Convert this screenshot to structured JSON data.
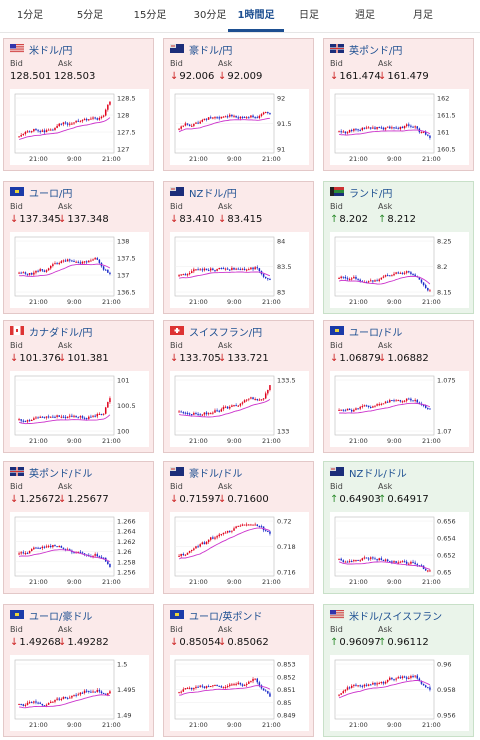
{
  "tabs": [
    {
      "label": "1分足"
    },
    {
      "label": "5分足"
    },
    {
      "label": "15分足"
    },
    {
      "label": "30分足"
    },
    {
      "label": "1時間足",
      "active": true
    },
    {
      "label": "日足"
    },
    {
      "label": "週足"
    },
    {
      "label": "月足"
    }
  ],
  "labels": {
    "bid": "Bid",
    "ask": "Ask"
  },
  "cards": [
    {
      "pair": "米ドル/円",
      "flag": "us-flag",
      "bid": "128.501",
      "ask": "128.503",
      "dir": "none",
      "y_ticks": [
        "128.5",
        "128",
        "127.5",
        "127"
      ],
      "x_ticks": [
        "21:00",
        "9:00",
        "21:00"
      ]
    },
    {
      "pair": "豪ドル/円",
      "flag": "au-flag",
      "bid": "92.006",
      "ask": "92.009",
      "dir": "down",
      "y_ticks": [
        "92",
        "91.5",
        "91"
      ],
      "x_ticks": [
        "21:00",
        "9:00",
        "21:00"
      ]
    },
    {
      "pair": "英ポンド/円",
      "flag": "uk-flag",
      "bid": "161.474",
      "ask": "161.479",
      "dir": "down",
      "y_ticks": [
        "162",
        "161.5",
        "161",
        "160.5"
      ],
      "x_ticks": [
        "21:00",
        "9:00",
        "21:00"
      ]
    },
    {
      "pair": "ユーロ/円",
      "flag": "eu-flag",
      "bid": "137.345",
      "ask": "137.348",
      "dir": "down",
      "y_ticks": [
        "138",
        "137.5",
        "137",
        "136.5"
      ],
      "x_ticks": [
        "21:00",
        "9:00",
        "21:00"
      ]
    },
    {
      "pair": "NZドル/円",
      "flag": "nz-flag",
      "bid": "83.410",
      "ask": "83.415",
      "dir": "down",
      "y_ticks": [
        "84",
        "83.5",
        "83"
      ],
      "x_ticks": [
        "21:00",
        "9:00",
        "21:00"
      ]
    },
    {
      "pair": "ランド/円",
      "flag": "za-flag",
      "bid": "8.202",
      "ask": "8.212",
      "dir": "up",
      "y_ticks": [
        "8.25",
        "8.2",
        "8.15"
      ],
      "x_ticks": [
        "21:00",
        "9:00",
        "21:00"
      ]
    },
    {
      "pair": "カナダドル/円",
      "flag": "ca-flag",
      "bid": "101.376",
      "ask": "101.381",
      "dir": "down",
      "y_ticks": [
        "101",
        "100.5",
        "100"
      ],
      "x_ticks": [
        "21:00",
        "9:00",
        "21:00"
      ]
    },
    {
      "pair": "スイスフラン/円",
      "flag": "ch-flag",
      "bid": "133.705",
      "ask": "133.721",
      "dir": "down",
      "y_ticks": [
        "133.5",
        "133"
      ],
      "x_ticks": [
        "21:00",
        "9:00",
        "21:00"
      ]
    },
    {
      "pair": "ユーロ/ドル",
      "flag": "eu-flag",
      "bid": "1.06879",
      "ask": "1.06882",
      "dir": "down",
      "y_ticks": [
        "1.075",
        "1.07"
      ],
      "x_ticks": [
        "21:00",
        "9:00",
        "21:00"
      ]
    },
    {
      "pair": "英ポンド/ドル",
      "flag": "uk-flag",
      "bid": "1.25672",
      "ask": "1.25677",
      "dir": "down",
      "y_ticks": [
        "1.266",
        "1.264",
        "1.262",
        "1.26",
        "1.258",
        "1.256"
      ],
      "x_ticks": [
        "21:00",
        "9:00",
        "21:00"
      ]
    },
    {
      "pair": "豪ドル/ドル",
      "flag": "au-flag",
      "bid": "0.71597",
      "ask": "0.71600",
      "dir": "down",
      "y_ticks": [
        "0.72",
        "0.718",
        "0.716"
      ],
      "x_ticks": [
        "21:00",
        "9:00",
        "21:00"
      ]
    },
    {
      "pair": "NZドル/ドル",
      "flag": "nz-flag",
      "bid": "0.64903",
      "ask": "0.64917",
      "dir": "up",
      "y_ticks": [
        "0.656",
        "0.654",
        "0.652",
        "0.65"
      ],
      "x_ticks": [
        "21:00",
        "9:00",
        "21:00"
      ]
    },
    {
      "pair": "ユーロ/豪ドル",
      "flag": "eu-flag",
      "bid": "1.49268",
      "ask": "1.49282",
      "dir": "down",
      "y_ticks": [
        "1.5",
        "1.495",
        "1.49"
      ],
      "x_ticks": [
        "21:00",
        "9:00",
        "21:00"
      ]
    },
    {
      "pair": "ユーロ/英ポンド",
      "flag": "eu-flag",
      "bid": "0.85054",
      "ask": "0.85062",
      "dir": "down",
      "y_ticks": [
        "0.853",
        "0.852",
        "0.851",
        "0.85",
        "0.849"
      ],
      "x_ticks": [
        "21:00",
        "9:00",
        "21:00"
      ]
    },
    {
      "pair": "米ドル/スイスフラン",
      "flag": "us-flag",
      "bid": "0.96097",
      "ask": "0.96112",
      "dir": "up",
      "y_ticks": [
        "0.96",
        "0.958",
        "0.956"
      ],
      "x_ticks": [
        "21:00",
        "9:00",
        "21:00"
      ]
    }
  ],
  "colors": {
    "bull": "#e0001b",
    "bear": "#1a2bc9",
    "ma": "#cc33cc",
    "up_bg": "#eaf4ea",
    "down_bg": "#fbeaea",
    "accent": "#1d4f91"
  }
}
